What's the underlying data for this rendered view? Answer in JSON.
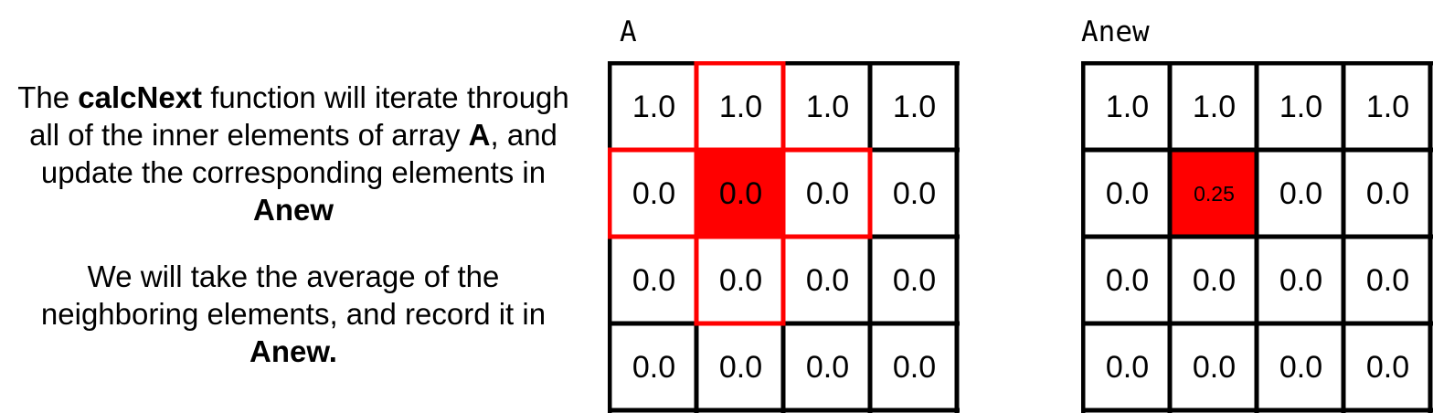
{
  "explanation": {
    "p1": {
      "t1": "The ",
      "b1": "calcNext",
      "t2": " function will iterate through all of the inner elements of array ",
      "b2": "A",
      "t3": ", and update the corresponding elements in ",
      "b3": "Anew"
    },
    "p2": {
      "t1": "We will take the average of the neighboring elements, and record it in ",
      "b1": "Anew."
    }
  },
  "arrays": [
    {
      "label": "A",
      "cells": [
        [
          "1.0",
          "1.0",
          "1.0",
          "1.0"
        ],
        [
          "0.0",
          "0.0",
          "0.0",
          "0.0"
        ],
        [
          "0.0",
          "0.0",
          "0.0",
          "0.0"
        ],
        [
          "0.0",
          "0.0",
          "0.0",
          "0.0"
        ]
      ],
      "active_cell": [
        1,
        1
      ],
      "neighbor_cells": [
        [
          0,
          1
        ],
        [
          1,
          0
        ],
        [
          1,
          2
        ],
        [
          2,
          1
        ]
      ]
    },
    {
      "label": "Anew",
      "cells": [
        [
          "1.0",
          "1.0",
          "1.0",
          "1.0"
        ],
        [
          "0.0",
          "0.25",
          "0.0",
          "0.0"
        ],
        [
          "0.0",
          "0.0",
          "0.0",
          "0.0"
        ],
        [
          "0.0",
          "0.0",
          "0.0",
          "0.0"
        ]
      ],
      "active_cell": [
        1,
        1
      ]
    }
  ],
  "colors": {
    "highlight": "#ff0000",
    "grid_line": "#000000",
    "background": "#ffffff"
  }
}
